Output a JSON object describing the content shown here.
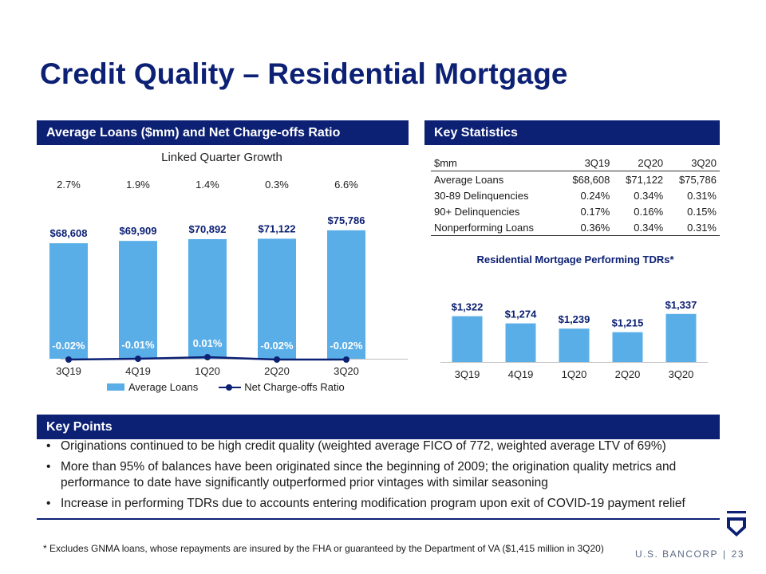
{
  "page_title": "Credit Quality – Residential Mortgage",
  "sections": {
    "left": "Average Loans ($mm) and Net Charge-offs Ratio",
    "right": "Key Statistics",
    "points": "Key Points"
  },
  "colors": {
    "navy": "#0c2074",
    "bar": "#5aaee8"
  },
  "linked_quarter": {
    "title": "Linked Quarter Growth",
    "values": [
      "2.7%",
      "1.9%",
      "1.4%",
      "0.3%",
      "6.6%"
    ]
  },
  "chart_data": [
    {
      "type": "bar",
      "categories": [
        "3Q19",
        "4Q19",
        "1Q20",
        "2Q20",
        "3Q20"
      ],
      "series": [
        {
          "name": "Average Loans",
          "values": [
            68608,
            69909,
            70892,
            71122,
            75786
          ]
        },
        {
          "name": "Net Charge-offs Ratio",
          "type": "line",
          "values": [
            -0.02,
            -0.01,
            0.01,
            -0.02,
            -0.02
          ]
        }
      ],
      "bar_labels": [
        "$68,608",
        "$69,909",
        "$70,892",
        "$71,122",
        "$75,786"
      ],
      "line_labels": [
        "-0.02%",
        "-0.01%",
        "0.01%",
        "-0.02%",
        "-0.02%"
      ],
      "legend": [
        "Average Loans",
        "Net Charge-offs Ratio"
      ],
      "legend_position": "bottom",
      "grid": false
    },
    {
      "type": "bar",
      "title": "Residential Mortgage Performing TDRs*",
      "categories": [
        "3Q19",
        "4Q19",
        "1Q20",
        "2Q20",
        "3Q20"
      ],
      "values": [
        1322,
        1274,
        1239,
        1215,
        1337
      ],
      "labels": [
        "$1,322",
        "$1,274",
        "$1,239",
        "$1,215",
        "$1,337"
      ],
      "grid": false
    }
  ],
  "key_stats": {
    "headers": [
      "$mm",
      "3Q19",
      "2Q20",
      "3Q20"
    ],
    "rows": [
      [
        "Average Loans",
        "$68,608",
        "$71,122",
        "$75,786"
      ],
      [
        "30-89 Delinquencies",
        "0.24%",
        "0.34%",
        "0.31%"
      ],
      [
        "90+ Delinquencies",
        "0.17%",
        "0.16%",
        "0.15%"
      ],
      [
        "Nonperforming Loans",
        "0.36%",
        "0.34%",
        "0.31%"
      ]
    ]
  },
  "key_points": [
    "Originations continued to be high credit quality (weighted average FICO of 772, weighted average LTV of 69%)",
    "More than 95% of balances have been originated since the beginning of 2009; the origination quality metrics and performance to date have significantly outperformed prior vintages with similar seasoning",
    "Increase in performing TDRs due to accounts entering modification program upon exit of COVID-19 payment relief"
  ],
  "footnote": "* Excludes GNMA loans, whose repayments are insured by the FHA or guaranteed by the Department of VA ($1,415 million in 3Q20)",
  "footer": {
    "brand": "U.S. BANCORP",
    "page_number": "23"
  }
}
